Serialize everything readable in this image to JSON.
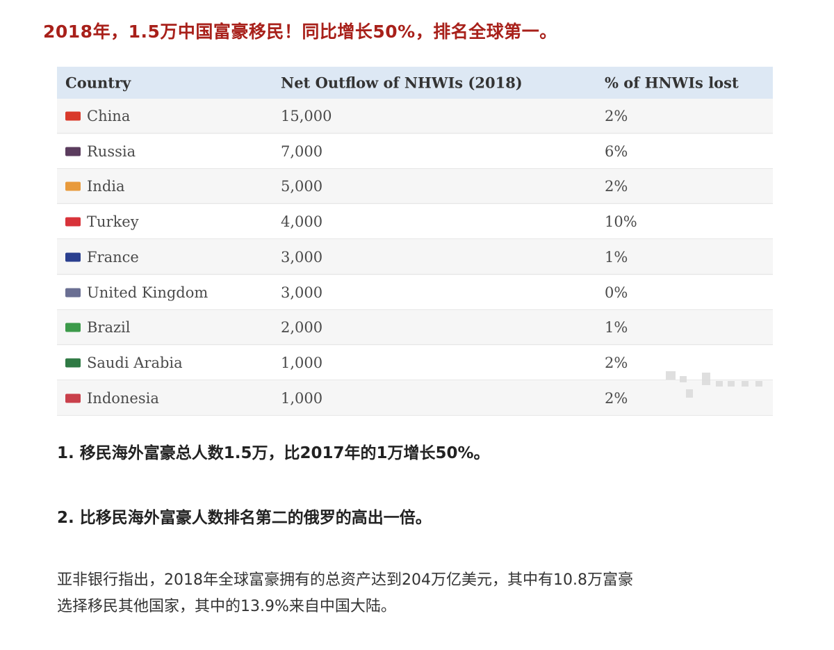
{
  "headline": "2018年，1.5万中国富豪移民！同比增长50%，排名全球第一。",
  "table": {
    "headers": [
      "Country",
      "Net Outflow of NHWIs (2018)",
      "% of HNWIs lost"
    ],
    "rows": [
      {
        "country": "China",
        "outflow": "15,000",
        "lost": "2%",
        "flag_icon": "china-flag-icon",
        "flag_color": "#d93a2b"
      },
      {
        "country": "Russia",
        "outflow": "7,000",
        "lost": "6%",
        "flag_icon": "russia-flag-icon",
        "flag_color": "#5b3c5e"
      },
      {
        "country": "India",
        "outflow": "5,000",
        "lost": "2%",
        "flag_icon": "india-flag-icon",
        "flag_color": "#e89a3c"
      },
      {
        "country": "Turkey",
        "outflow": "4,000",
        "lost": "10%",
        "flag_icon": "turkey-flag-icon",
        "flag_color": "#d8333a"
      },
      {
        "country": "France",
        "outflow": "3,000",
        "lost": "1%",
        "flag_icon": "france-flag-icon",
        "flag_color": "#2a3f8f"
      },
      {
        "country": "United Kingdom",
        "outflow": "3,000",
        "lost": "0%",
        "flag_icon": "uk-flag-icon",
        "flag_color": "#6a6f93"
      },
      {
        "country": "Brazil",
        "outflow": "2,000",
        "lost": "1%",
        "flag_icon": "brazil-flag-icon",
        "flag_color": "#3c9a4a"
      },
      {
        "country": "Saudi Arabia",
        "outflow": "1,000",
        "lost": "2%",
        "flag_icon": "saudi-arabia-flag-icon",
        "flag_color": "#2f7a44"
      },
      {
        "country": "Indonesia",
        "outflow": "1,000",
        "lost": "2%",
        "flag_icon": "indonesia-flag-icon",
        "flag_color": "#c9404b"
      }
    ]
  },
  "points": [
    "1. 移民海外富豪总人数1.5万，比2017年的1万增长50%。",
    "2. 比移民海外富豪人数排名第二的俄罗的高出一倍。"
  ],
  "paragraph": {
    "line1": "亚非银行指出，2018年全球富豪拥有的总资产达到204万亿美元，其中有10.8万富豪",
    "line2": "选择移民其他国家，其中的13.9%来自中国大陆。"
  }
}
